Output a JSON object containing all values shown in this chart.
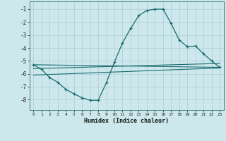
{
  "xlabel": "Humidex (Indice chaleur)",
  "background_color": "#cce8ec",
  "grid_color": "#aacdd4",
  "line_color": "#1a6b6e",
  "x_ticks": [
    0,
    1,
    2,
    3,
    4,
    5,
    6,
    7,
    8,
    9,
    10,
    11,
    12,
    13,
    14,
    15,
    16,
    17,
    18,
    19,
    20,
    21,
    22,
    23
  ],
  "y_ticks": [
    -1,
    -2,
    -3,
    -4,
    -5,
    -6,
    -7,
    -8
  ],
  "xlim": [
    -0.5,
    23.5
  ],
  "ylim": [
    -8.8,
    -0.4
  ],
  "line1_x": [
    0,
    1,
    2,
    3,
    4,
    5,
    6,
    7,
    8,
    9,
    10,
    11,
    12,
    13,
    14,
    15,
    16,
    17,
    18,
    19,
    20,
    21,
    22,
    23
  ],
  "line1_y": [
    -5.3,
    -5.65,
    -6.3,
    -6.65,
    -7.2,
    -7.55,
    -7.85,
    -8.05,
    -8.05,
    -6.7,
    -5.1,
    -3.6,
    -2.5,
    -1.5,
    -1.1,
    -1.0,
    -1.0,
    -2.1,
    -3.4,
    -3.9,
    -3.85,
    -4.45,
    -5.0,
    -5.5
  ],
  "line2_x": [
    0,
    23
  ],
  "line2_y": [
    -5.3,
    -5.5
  ],
  "line3_x": [
    0,
    23
  ],
  "line3_y": [
    -5.6,
    -5.2
  ],
  "line4_x": [
    0,
    23
  ],
  "line4_y": [
    -6.1,
    -5.55
  ]
}
